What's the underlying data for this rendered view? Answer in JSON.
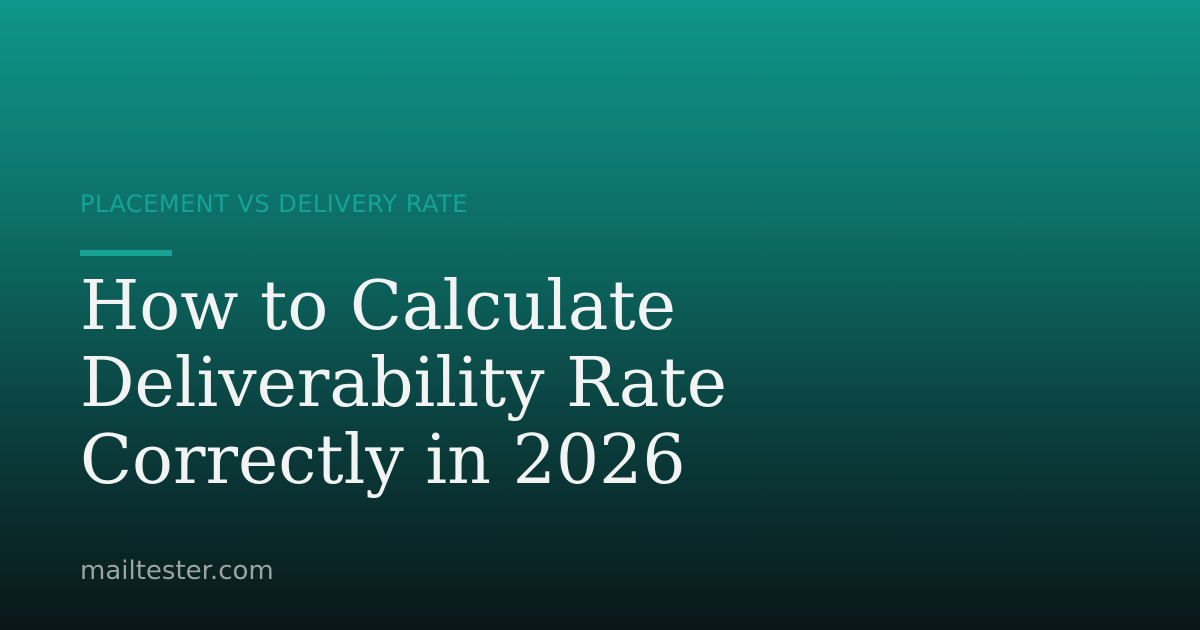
{
  "kicker": "PLACEMENT VS DELIVERY RATE",
  "title": {
    "lines": [
      "How to Calculate",
      "Deliverability Rate",
      "Correctly in 2026"
    ]
  },
  "footer": "mailtester.com"
}
